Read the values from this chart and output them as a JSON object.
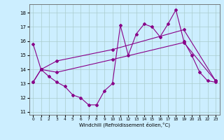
{
  "title": "",
  "xlabel": "Windchill (Refroidissement éolien,°C)",
  "bg_color": "#cceeff",
  "grid_color": "#aacccc",
  "line_color": "#880088",
  "xlim": [
    -0.5,
    23.5
  ],
  "ylim": [
    10.8,
    18.6
  ],
  "yticks": [
    11,
    12,
    13,
    14,
    15,
    16,
    17,
    18
  ],
  "xticks": [
    0,
    1,
    2,
    3,
    4,
    5,
    6,
    7,
    8,
    9,
    10,
    11,
    12,
    13,
    14,
    15,
    16,
    17,
    18,
    19,
    20,
    21,
    22,
    23
  ],
  "series1_x": [
    0,
    1,
    2,
    3,
    4,
    5,
    6,
    7,
    8,
    9,
    10,
    11,
    12,
    13,
    14,
    15,
    16,
    17,
    18,
    19,
    20,
    21,
    22,
    23
  ],
  "series1_y": [
    15.8,
    14.0,
    13.5,
    13.1,
    12.8,
    12.2,
    12.0,
    11.5,
    11.5,
    12.5,
    13.0,
    17.1,
    15.0,
    16.5,
    17.2,
    17.0,
    16.3,
    17.2,
    18.2,
    16.0,
    15.0,
    13.8,
    13.2,
    13.1
  ],
  "series2_x": [
    0,
    1,
    3,
    10,
    19,
    23
  ],
  "series2_y": [
    13.1,
    14.0,
    13.8,
    14.7,
    15.9,
    13.2
  ],
  "series3_x": [
    0,
    1,
    3,
    10,
    19,
    23
  ],
  "series3_y": [
    13.1,
    14.0,
    14.6,
    15.4,
    16.8,
    13.2
  ]
}
